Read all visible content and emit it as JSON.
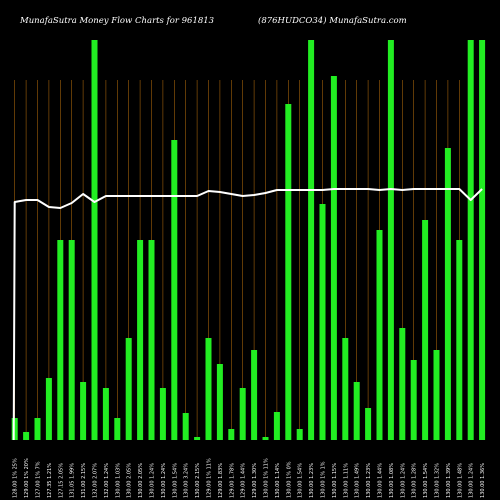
{
  "header": {
    "left": "MunafaSutra  Money Flow  Charts for 961813",
    "right": "(876HUDCO34) MunafaSutra.com"
  },
  "colors": {
    "background": "#000000",
    "bar": "#22ee22",
    "gridline": "#a0600a",
    "line": "#ffffff",
    "label": "#ffffff"
  },
  "chart_data": {
    "type": "bar",
    "grid": true,
    "gridline_orientation": "vertical",
    "categories": [
      "128.00 1% 25%",
      "129.00 1% 20%",
      "127.00 1% 7%",
      "127.35 1.21%",
      "127.15 2.05%",
      "131.05 1.99%",
      "131.00 2.15%",
      "132.00 2.07%",
      "132.00 1.24%",
      "130.00 1.03%",
      "130.00 2.05%",
      "130.00 2.05%",
      "130.00 1.24%",
      "130.00 1.24%",
      "130.00 1.54%",
      "130.00 3.24%",
      "130.00 2.15%",
      "129.00 1% 11%",
      "129.00 1.83%",
      "129.00 1.78%",
      "129.00 1.44%",
      "129.00 1.30%",
      "130.00 1% 11%",
      "130.00 1.14%",
      "130.00 1% 0%",
      "130.00 1.54%",
      "130.00 1.23%",
      "130.00 1% 1%",
      "130.00 1.15%",
      "130.00 1.11%",
      "130.00 1.49%",
      "130.00 1.23%",
      "130.00 1.44%",
      "130.00 1.08%",
      "130.00 1.24%",
      "130.00 1.28%",
      "130.00 1.54%",
      "130.00 1.32%",
      "130.00 1.39%",
      "130.00 1.48%",
      "130.00 1.24%",
      "130.00 1.36%"
    ],
    "series": [
      {
        "kind": "bar",
        "values": [
          22,
          8,
          22,
          62,
          200,
          200,
          58,
          400,
          52,
          22,
          102,
          200,
          200,
          52,
          300,
          27,
          3,
          102,
          76,
          11,
          52,
          90,
          3,
          28,
          336,
          11,
          400,
          236,
          364,
          102,
          58,
          32,
          210,
          400,
          112,
          80,
          220,
          90,
          292,
          200,
          400,
          400
        ]
      },
      {
        "kind": "line",
        "values": [
          238,
          240,
          240,
          233,
          232,
          237,
          246,
          238,
          244,
          244,
          244,
          244,
          244,
          244,
          244,
          244,
          244,
          249,
          248,
          246,
          244,
          245,
          247,
          250,
          250,
          250,
          250,
          250,
          251,
          251,
          251,
          251,
          250,
          251,
          250,
          251,
          251,
          251,
          251,
          251,
          240,
          251
        ]
      }
    ],
    "ylim": [
      0,
      400
    ]
  }
}
